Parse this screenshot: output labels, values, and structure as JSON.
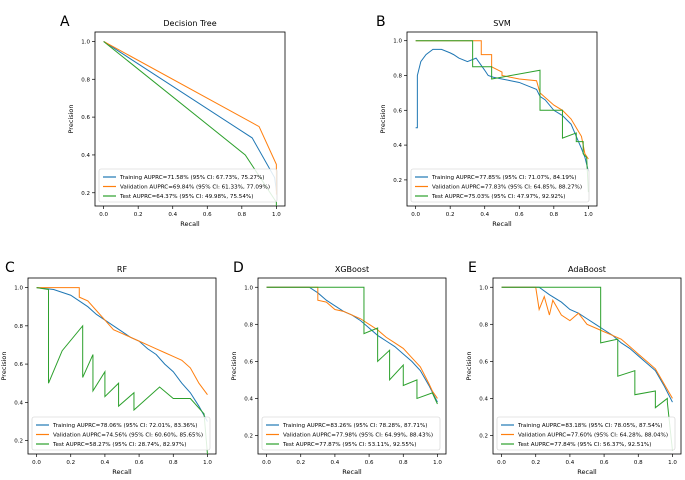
{
  "colors": {
    "training": "#1f77b4",
    "validation": "#ff7f0e",
    "test": "#2ca02c"
  },
  "chart_data": [
    {
      "letter": "A",
      "type": "line",
      "title": "Decision Tree",
      "xlabel": "Recall",
      "ylabel": "Precision",
      "xlim": [
        -0.05,
        1.05
      ],
      "ylim": [
        0.13,
        1.05
      ],
      "xticks": [
        0.0,
        0.2,
        0.4,
        0.6,
        0.8,
        1.0
      ],
      "xtick_labels": [
        "0.0",
        "0.2",
        "0.4",
        "0.6",
        "0.8",
        "1.0"
      ],
      "yticks": [
        0.2,
        0.4,
        0.6,
        0.8,
        1.0
      ],
      "ytick_labels": [
        "0.2",
        "0.4",
        "0.6",
        "0.8",
        "1.0"
      ],
      "legend_position": "lower-left",
      "series": [
        {
          "name": "Training AUPRC=71.58% (95% CI: 67.73%, 75.27%)",
          "color_key": "training",
          "x": [
            0,
            0.86,
            0.99,
            1.0
          ],
          "y": [
            1.0,
            0.49,
            0.28,
            0.21
          ]
        },
        {
          "name": "Validation AUPRC=69.84% (95% CI: 61.33%, 77.09%)",
          "color_key": "validation",
          "x": [
            0,
            0.9,
            1.0,
            1.0
          ],
          "y": [
            1.0,
            0.55,
            0.35,
            0.19
          ]
        },
        {
          "name": "Test AUPRC=64.37% (95% CI: 49.98%, 75.54%)",
          "color_key": "test",
          "x": [
            0,
            0.82,
            1.0,
            1.0
          ],
          "y": [
            1.0,
            0.4,
            0.15,
            0.13
          ]
        }
      ]
    },
    {
      "letter": "B",
      "type": "line",
      "title": "SVM",
      "xlabel": "Recall",
      "ylabel": "Precision",
      "xlim": [
        -0.05,
        1.05
      ],
      "ylim": [
        0.05,
        1.05
      ],
      "xticks": [
        0.0,
        0.2,
        0.4,
        0.6,
        0.8,
        1.0
      ],
      "xtick_labels": [
        "0.0",
        "0.2",
        "0.4",
        "0.6",
        "0.8",
        "1.0"
      ],
      "yticks": [
        0.2,
        0.4,
        0.6,
        0.8,
        1.0
      ],
      "ytick_labels": [
        "0.2",
        "0.4",
        "0.6",
        "0.8",
        "1.0"
      ],
      "legend_position": "lower-left",
      "series": [
        {
          "name": "Training AUPRC=77.85% (95% CI: 71.07%, 84.19%)",
          "color_key": "training",
          "x": [
            0,
            0.01,
            0.01,
            0.03,
            0.06,
            0.1,
            0.15,
            0.2,
            0.22,
            0.25,
            0.3,
            0.35,
            0.4,
            0.42,
            0.45,
            0.5,
            0.55,
            0.6,
            0.65,
            0.7,
            0.72,
            0.75,
            0.8,
            0.85,
            0.9,
            0.93,
            0.96,
            0.98,
            1.0
          ],
          "y": [
            0.5,
            0.5,
            0.8,
            0.88,
            0.92,
            0.95,
            0.95,
            0.93,
            0.92,
            0.9,
            0.88,
            0.9,
            0.83,
            0.8,
            0.79,
            0.78,
            0.77,
            0.76,
            0.74,
            0.72,
            0.68,
            0.66,
            0.6,
            0.57,
            0.52,
            0.45,
            0.38,
            0.33,
            0.25
          ]
        },
        {
          "name": "Validation AUPRC=77.83% (95% CI: 64.85%, 88.27%)",
          "color_key": "validation",
          "x": [
            0,
            0.0,
            0.38,
            0.38,
            0.44,
            0.44,
            0.5,
            0.5,
            0.6,
            0.7,
            0.72,
            0.8,
            0.85,
            0.9,
            0.93,
            0.96,
            0.98,
            1.0
          ],
          "y": [
            1.0,
            1.0,
            1.0,
            0.92,
            0.92,
            0.85,
            0.82,
            0.8,
            0.78,
            0.77,
            0.7,
            0.63,
            0.6,
            0.55,
            0.5,
            0.45,
            0.35,
            0.32
          ]
        },
        {
          "name": "Test AUPRC=75.03% (95% CI: 47.97%, 92.92%)",
          "color_key": "test",
          "x": [
            0,
            0.0,
            0.33,
            0.33,
            0.44,
            0.44,
            0.72,
            0.72,
            0.85,
            0.85,
            0.93,
            0.93,
            0.97,
            0.97,
            0.99,
            1.0
          ],
          "y": [
            1.0,
            1.0,
            1.0,
            0.85,
            0.85,
            0.78,
            0.83,
            0.6,
            0.6,
            0.44,
            0.47,
            0.42,
            0.42,
            0.35,
            0.33,
            0.13
          ]
        }
      ]
    },
    {
      "letter": "C",
      "type": "line",
      "title": "RF",
      "xlabel": "Recall",
      "ylabel": "Precision",
      "xlim": [
        -0.05,
        1.05
      ],
      "ylim": [
        0.13,
        1.05
      ],
      "xticks": [
        0.0,
        0.2,
        0.4,
        0.6,
        0.8,
        1.0
      ],
      "xtick_labels": [
        "0.0",
        "0.2",
        "0.4",
        "0.6",
        "0.8",
        "1.0"
      ],
      "yticks": [
        0.2,
        0.4,
        0.6,
        0.8,
        1.0
      ],
      "ytick_labels": [
        "0.2",
        "0.4",
        "0.6",
        "0.8",
        "1.0"
      ],
      "legend_position": "lower-left",
      "series": [
        {
          "name": "Training AUPRC=78.06% (95% CI: 72.01%, 83.36%)",
          "color_key": "training",
          "x": [
            0,
            0.1,
            0.2,
            0.25,
            0.3,
            0.35,
            0.4,
            0.45,
            0.5,
            0.55,
            0.6,
            0.65,
            0.7,
            0.75,
            0.8,
            0.85,
            0.9,
            0.95,
            1.0
          ],
          "y": [
            1.0,
            0.99,
            0.96,
            0.93,
            0.9,
            0.86,
            0.83,
            0.8,
            0.77,
            0.74,
            0.72,
            0.68,
            0.65,
            0.6,
            0.56,
            0.5,
            0.45,
            0.38,
            0.3
          ]
        },
        {
          "name": "Validation AUPRC=74.56% (95% CI: 60.60%, 85.65%)",
          "color_key": "validation",
          "x": [
            0,
            0.0,
            0.25,
            0.25,
            0.3,
            0.35,
            0.4,
            0.45,
            0.5,
            0.6,
            0.65,
            0.7,
            0.75,
            0.8,
            0.85,
            0.9,
            0.95,
            1.0
          ],
          "y": [
            1.0,
            1.0,
            1.0,
            0.95,
            0.93,
            0.88,
            0.83,
            0.78,
            0.76,
            0.72,
            0.7,
            0.68,
            0.66,
            0.64,
            0.62,
            0.58,
            0.5,
            0.44
          ]
        },
        {
          "name": "Test AUPRC=58.27% (95% CI: 28.74%, 82.97%)",
          "color_key": "test",
          "x": [
            0,
            0.07,
            0.07,
            0.15,
            0.27,
            0.27,
            0.33,
            0.33,
            0.4,
            0.4,
            0.48,
            0.48,
            0.57,
            0.57,
            0.72,
            0.8,
            0.9,
            0.98,
            1.0
          ],
          "y": [
            1.0,
            0.99,
            0.5,
            0.67,
            0.8,
            0.53,
            0.65,
            0.46,
            0.56,
            0.43,
            0.5,
            0.38,
            0.45,
            0.36,
            0.48,
            0.42,
            0.42,
            0.34,
            0.13
          ]
        }
      ]
    },
    {
      "letter": "D",
      "type": "line",
      "title": "XGBoost",
      "xlabel": "Recall",
      "ylabel": "Precision",
      "xlim": [
        -0.05,
        1.05
      ],
      "ylim": [
        0.1,
        1.05
      ],
      "xticks": [
        0.0,
        0.2,
        0.4,
        0.6,
        0.8,
        1.0
      ],
      "xtick_labels": [
        "0.0",
        "0.2",
        "0.4",
        "0.6",
        "0.8",
        "1.0"
      ],
      "yticks": [
        0.2,
        0.4,
        0.6,
        0.8,
        1.0
      ],
      "ytick_labels": [
        "0.2",
        "0.4",
        "0.6",
        "0.8",
        "1.0"
      ],
      "legend_position": "lower-left",
      "series": [
        {
          "name": "Training AUPRC=83.26% (95% CI: 78.28%, 87.71%)",
          "color_key": "training",
          "x": [
            0,
            0.25,
            0.3,
            0.35,
            0.4,
            0.45,
            0.5,
            0.55,
            0.6,
            0.65,
            0.7,
            0.75,
            0.8,
            0.85,
            0.9,
            0.95,
            1.0
          ],
          "y": [
            1.0,
            1.0,
            0.97,
            0.93,
            0.9,
            0.87,
            0.85,
            0.82,
            0.78,
            0.74,
            0.71,
            0.68,
            0.64,
            0.6,
            0.55,
            0.47,
            0.38
          ]
        },
        {
          "name": "Validation AUPRC=77.98% (95% CI: 64.99%, 88.43%)",
          "color_key": "validation",
          "x": [
            0,
            0.0,
            0.3,
            0.3,
            0.35,
            0.4,
            0.45,
            0.5,
            0.55,
            0.6,
            0.65,
            0.7,
            0.75,
            0.8,
            0.85,
            0.9,
            0.95,
            0.97,
            1.0
          ],
          "y": [
            1.0,
            1.0,
            1.0,
            0.93,
            0.92,
            0.88,
            0.87,
            0.85,
            0.83,
            0.8,
            0.77,
            0.73,
            0.7,
            0.67,
            0.62,
            0.57,
            0.48,
            0.44,
            0.4
          ]
        },
        {
          "name": "Test AUPRC=77.87% (95% CI: 53.11%, 92.55%)",
          "color_key": "test",
          "x": [
            0,
            0.0,
            0.57,
            0.57,
            0.65,
            0.65,
            0.72,
            0.72,
            0.8,
            0.8,
            0.88,
            0.88,
            0.97,
            1.0
          ],
          "y": [
            1.0,
            1.0,
            1.0,
            0.75,
            0.78,
            0.6,
            0.66,
            0.5,
            0.58,
            0.47,
            0.5,
            0.4,
            0.43,
            0.37
          ]
        }
      ]
    },
    {
      "letter": "E",
      "type": "line",
      "title": "AdaBoost",
      "xlabel": "Recall",
      "ylabel": "Precision",
      "xlim": [
        -0.05,
        1.05
      ],
      "ylim": [
        0.1,
        1.05
      ],
      "xticks": [
        0.0,
        0.2,
        0.4,
        0.6,
        0.8,
        1.0
      ],
      "xtick_labels": [
        "0.0",
        "0.2",
        "0.4",
        "0.6",
        "0.8",
        "1.0"
      ],
      "yticks": [
        0.2,
        0.4,
        0.6,
        0.8,
        1.0
      ],
      "ytick_labels": [
        "0.2",
        "0.4",
        "0.6",
        "0.8",
        "1.0"
      ],
      "legend_position": "lower-left",
      "series": [
        {
          "name": "Training AUPRC=83.18% (95% CI: 78.05%, 87.54%)",
          "color_key": "training",
          "x": [
            0,
            0.22,
            0.28,
            0.35,
            0.4,
            0.45,
            0.5,
            0.55,
            0.6,
            0.65,
            0.7,
            0.75,
            0.8,
            0.85,
            0.9,
            0.95,
            1.0
          ],
          "y": [
            1.0,
            1.0,
            0.96,
            0.92,
            0.88,
            0.86,
            0.83,
            0.8,
            0.77,
            0.74,
            0.7,
            0.67,
            0.63,
            0.59,
            0.55,
            0.47,
            0.38
          ]
        },
        {
          "name": "Validation AUPRC=77.60% (95% CI: 64.28%, 88.04%)",
          "color_key": "validation",
          "x": [
            0,
            0.0,
            0.2,
            0.22,
            0.25,
            0.28,
            0.3,
            0.35,
            0.4,
            0.45,
            0.5,
            0.55,
            0.6,
            0.65,
            0.7,
            0.75,
            0.8,
            0.85,
            0.9,
            0.95,
            1.0
          ],
          "y": [
            1.0,
            1.0,
            1.0,
            0.88,
            0.95,
            0.85,
            0.93,
            0.85,
            0.82,
            0.86,
            0.8,
            0.78,
            0.76,
            0.74,
            0.72,
            0.68,
            0.64,
            0.6,
            0.56,
            0.48,
            0.4
          ]
        },
        {
          "name": "Test AUPRC=77.84% (95% CI: 56.37%, 92.51%)",
          "color_key": "test",
          "x": [
            0,
            0.0,
            0.58,
            0.58,
            0.68,
            0.68,
            0.78,
            0.78,
            0.9,
            0.9,
            0.97,
            0.97,
            1.0
          ],
          "y": [
            1.0,
            1.0,
            1.0,
            0.7,
            0.72,
            0.52,
            0.55,
            0.42,
            0.44,
            0.35,
            0.4,
            0.38,
            0.12
          ]
        }
      ]
    }
  ]
}
